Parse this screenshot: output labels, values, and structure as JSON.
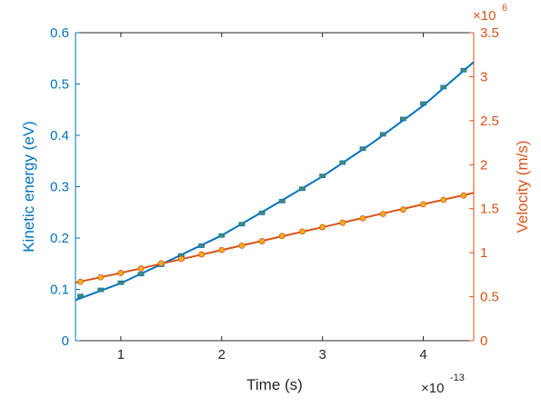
{
  "chart_data": {
    "type": "line",
    "xlabel": "Time (s)",
    "x_exponent_label": {
      "base": "×10",
      "exp": "-13"
    },
    "xlim": [
      0.55,
      4.5
    ],
    "xticks": [
      1,
      2,
      3,
      4
    ],
    "left_axis": {
      "label": "Kinetic energy (eV)",
      "lim": [
        0,
        0.6
      ],
      "ticks": [
        0,
        0.1,
        0.2,
        0.3,
        0.4,
        0.5,
        0.6
      ],
      "tick_labels": [
        "0",
        "0.1",
        "0.2",
        "0.3",
        "0.4",
        "0.5",
        "0.6"
      ],
      "color": "#0072BD"
    },
    "right_axis": {
      "label": "Velocity (m/s)",
      "lim": [
        0,
        3.5
      ],
      "ticks": [
        0,
        0.5,
        1,
        1.5,
        2,
        2.5,
        3,
        3.5
      ],
      "tick_labels": [
        "0",
        "0.5",
        "1",
        "1.5",
        "2",
        "2.5",
        "3",
        "3.5"
      ],
      "exponent_label": {
        "base": "×10",
        "exp": "6"
      },
      "color": "#D95319"
    },
    "series": [
      {
        "axis": "left",
        "color": "#0072BD",
        "marker_color": "#4a8a6a",
        "line": {
          "x": [
            0.55,
            1.0,
            1.5,
            2.0,
            2.5,
            3.0,
            3.5,
            4.0,
            4.5
          ],
          "y": [
            0.079,
            0.112,
            0.158,
            0.205,
            0.262,
            0.32,
            0.386,
            0.458,
            0.543
          ]
        },
        "markers": {
          "x": [
            0.6,
            0.8,
            1.0,
            1.2,
            1.4,
            1.6,
            1.8,
            2.0,
            2.2,
            2.4,
            2.6,
            2.8,
            3.0,
            3.2,
            3.4,
            3.6,
            3.8,
            4.0,
            4.2,
            4.4
          ],
          "y": [
            0.087,
            0.099,
            0.113,
            0.13,
            0.148,
            0.166,
            0.185,
            0.205,
            0.227,
            0.249,
            0.272,
            0.296,
            0.321,
            0.347,
            0.374,
            0.402,
            0.432,
            0.462,
            0.494,
            0.527
          ]
        }
      },
      {
        "axis": "right",
        "color": "#D95319",
        "marker_color": "#EDB120",
        "line": {
          "x": [
            0.55,
            1.0,
            1.5,
            2.0,
            2.5,
            3.0,
            3.5,
            4.0,
            4.5
          ],
          "y": [
            0.66,
            0.77,
            0.9,
            1.03,
            1.16,
            1.29,
            1.42,
            1.55,
            1.68
          ]
        },
        "markers": {
          "x": [
            0.6,
            0.8,
            1.0,
            1.2,
            1.4,
            1.6,
            1.8,
            2.0,
            2.2,
            2.4,
            2.6,
            2.8,
            3.0,
            3.2,
            3.4,
            3.6,
            3.8,
            4.0,
            4.2,
            4.4
          ],
          "y": [
            0.67,
            0.72,
            0.77,
            0.82,
            0.88,
            0.93,
            0.98,
            1.03,
            1.08,
            1.13,
            1.19,
            1.24,
            1.29,
            1.34,
            1.39,
            1.44,
            1.49,
            1.55,
            1.6,
            1.65
          ]
        }
      }
    ]
  }
}
